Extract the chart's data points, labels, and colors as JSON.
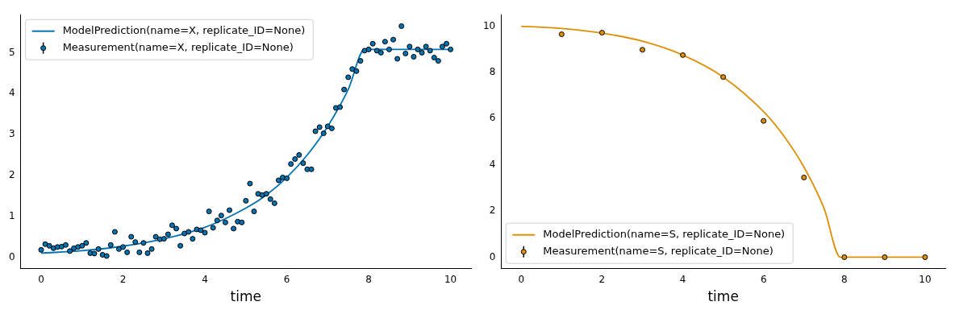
{
  "chart_data": [
    {
      "type": "scatter",
      "xlabel": "time",
      "xlim": [
        -0.5,
        10.5
      ],
      "xticks": [
        0,
        2,
        4,
        6,
        8,
        10
      ],
      "ylim": [
        -0.27,
        5.93
      ],
      "yticks": [
        0,
        1,
        2,
        3,
        4,
        5
      ],
      "legend": "top left",
      "grid": false,
      "series": [
        {
          "name": "ModelPrediction(name=X, replicate_ID=None)",
          "type": "line",
          "marker": "none",
          "color": "#0173b2",
          "x": [
            0,
            1,
            2,
            3,
            4,
            5,
            5.5,
            6,
            6.5,
            7,
            7.5,
            7.9,
            10
          ],
          "values": [
            0.1,
            0.16,
            0.27,
            0.45,
            0.73,
            1.2,
            1.52,
            1.95,
            2.5,
            3.2,
            4.1,
            5.08,
            5.08
          ]
        },
        {
          "name": "Measurement(name=X, replicate_ID=None)",
          "type": "scatter",
          "marker": "circle",
          "color": "#0173b2",
          "x": [
            0,
            0.1,
            0.2,
            0.3,
            0.4,
            0.5,
            0.6,
            0.7,
            0.8,
            0.9,
            1,
            1.1,
            1.2,
            1.3,
            1.4,
            1.5,
            1.6,
            1.7,
            1.8,
            1.9,
            2,
            2.1,
            2.2,
            2.3,
            2.4,
            2.5,
            2.6,
            2.7,
            2.8,
            2.9,
            3,
            3.1,
            3.2,
            3.3,
            3.4,
            3.5,
            3.6,
            3.7,
            3.8,
            3.9,
            4,
            4.1,
            4.2,
            4.3,
            4.4,
            4.5,
            4.6,
            4.7,
            4.8,
            4.9,
            5,
            5.1,
            5.2,
            5.3,
            5.4,
            5.5,
            5.6,
            5.7,
            5.8,
            5.9,
            6,
            6.1,
            6.2,
            6.3,
            6.4,
            6.5,
            6.6,
            6.7,
            6.8,
            6.9,
            7,
            7.1,
            7.2,
            7.3,
            7.4,
            7.5,
            7.6,
            7.7,
            7.8,
            7.9,
            8,
            8.1,
            8.2,
            8.3,
            8.4,
            8.5,
            8.6,
            8.7,
            8.8,
            8.9,
            9,
            9.1,
            9.2,
            9.3,
            9.4,
            9.5,
            9.6,
            9.7,
            9.8,
            9.9,
            10
          ],
          "values": [
            0.18,
            0.32,
            0.28,
            0.22,
            0.25,
            0.26,
            0.3,
            0.15,
            0.22,
            0.25,
            0.28,
            0.35,
            0.1,
            0.09,
            0.2,
            0.06,
            0.03,
            0.3,
            0.62,
            0.2,
            0.25,
            0.12,
            0.5,
            0.37,
            0.12,
            0.35,
            0.1,
            0.2,
            0.5,
            0.44,
            0.45,
            0.56,
            0.78,
            0.7,
            0.28,
            0.58,
            0.62,
            0.45,
            0.68,
            0.66,
            0.6,
            1.12,
            0.72,
            0.9,
            1.02,
            0.85,
            1.15,
            0.7,
            0.87,
            0.85,
            1.38,
            1.8,
            1.12,
            1.55,
            1.52,
            1.55,
            1.42,
            1.32,
            1.88,
            1.95,
            1.93,
            2.28,
            2.4,
            2.5,
            2.3,
            2.15,
            2.15,
            3.08,
            3.18,
            3.03,
            3.2,
            3.15,
            3.65,
            3.67,
            4.1,
            4.4,
            4.6,
            4.55,
            4.8,
            5.05,
            5.08,
            5.22,
            5.05,
            5.0,
            5.27,
            5.08,
            5.32,
            4.85,
            5.65,
            4.98,
            5.15,
            4.9,
            5.08,
            5.0,
            5.15,
            5.05,
            4.88,
            4.8,
            5.15,
            5.22,
            5.08
          ]
        }
      ]
    },
    {
      "type": "scatter",
      "xlabel": "time",
      "xlim": [
        -0.5,
        10.5
      ],
      "xticks": [
        0,
        2,
        4,
        6,
        8,
        10
      ],
      "ylim": [
        -0.48,
        10.5
      ],
      "yticks": [
        0,
        2,
        4,
        6,
        8,
        10
      ],
      "legend": "bottom left",
      "grid": false,
      "series": [
        {
          "name": "ModelPrediction(name=S, replicate_ID=None)",
          "type": "line",
          "marker": "none",
          "color": "#de8f05",
          "x": [
            0,
            1,
            2,
            3,
            4,
            5,
            6,
            6.5,
            7,
            7.5,
            7.9,
            10
          ],
          "values": [
            10,
            9.9,
            9.7,
            9.35,
            8.75,
            7.8,
            6.3,
            5.25,
            3.9,
            2.1,
            0,
            0
          ]
        },
        {
          "name": "Measurement(name=S, replicate_ID=None)",
          "type": "scatter",
          "marker": "circle",
          "color": "#de8f05",
          "x": [
            1,
            2,
            3,
            4,
            5,
            6,
            7,
            8,
            9,
            10
          ],
          "values": [
            9.65,
            9.72,
            8.98,
            8.75,
            7.8,
            5.9,
            3.45,
            0,
            0,
            0
          ]
        }
      ]
    }
  ]
}
